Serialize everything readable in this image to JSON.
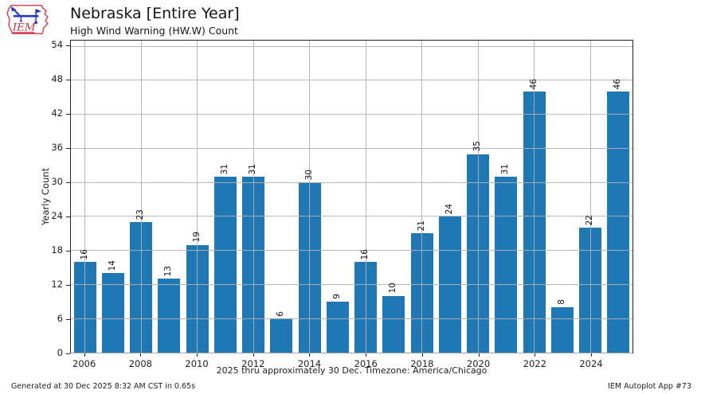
{
  "logo": {
    "text": "IEM"
  },
  "chart_data": {
    "type": "bar",
    "title": "Nebraska [Entire Year]",
    "subtitle": "High Wind Warning (HW.W) Count",
    "xlabel": "2025 thru approximately 30 Dec. Timezone: America/Chicago",
    "ylabel": "Yearly Count",
    "categories": [
      2006,
      2007,
      2008,
      2009,
      2010,
      2011,
      2012,
      2013,
      2014,
      2015,
      2016,
      2017,
      2018,
      2019,
      2020,
      2021,
      2022,
      2023,
      2024,
      2025
    ],
    "values": [
      16,
      14,
      23,
      13,
      19,
      31,
      31,
      6,
      30,
      9,
      16,
      10,
      21,
      24,
      35,
      31,
      46,
      8,
      22,
      46
    ],
    "xticks": [
      2006,
      2008,
      2010,
      2012,
      2014,
      2016,
      2018,
      2020,
      2022,
      2024
    ],
    "yticks": [
      0,
      6,
      12,
      18,
      24,
      30,
      36,
      42,
      48,
      54
    ],
    "ylim": [
      0,
      55
    ],
    "grid": true,
    "legend": "none",
    "bar_color": "#1f77b4",
    "grid_color": "#b0b0b0",
    "value_labels_rotation": 90
  },
  "footer": {
    "left": "Generated at 30 Dec 2025 8:32 AM CST in 0.65s",
    "right": "IEM Autoplot App #73"
  }
}
